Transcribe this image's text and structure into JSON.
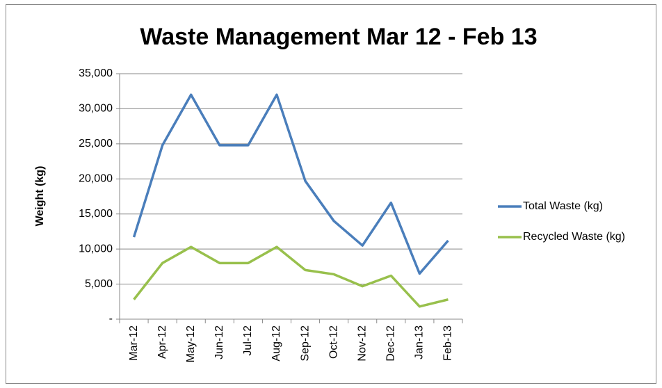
{
  "chart_data": {
    "type": "line",
    "title": "Waste Management Mar 12 - Feb 13",
    "y_label": "Weight (kg)",
    "categories": [
      "Mar-12",
      "Apr-12",
      "May-12",
      "Jun-12",
      "Jul-12",
      "Aug-12",
      "Sep-12",
      "Oct-12",
      "Nov-12",
      "Dec-12",
      "Jan-13",
      "Feb-13"
    ],
    "series": [
      {
        "name": "Total Waste (kg)",
        "color": "#4a7ebb",
        "values": [
          11700,
          24800,
          32000,
          24800,
          24800,
          32000,
          19700,
          14000,
          10500,
          16600,
          6500,
          11200
        ]
      },
      {
        "name": "Recycled Waste (kg)",
        "color": "#98c04c",
        "values": [
          2800,
          8000,
          10300,
          8000,
          8000,
          10300,
          7000,
          6400,
          4700,
          6200,
          1800,
          2800
        ]
      }
    ],
    "ylim": [
      0,
      35000
    ],
    "yticks": [
      {
        "value": 0,
        "label": "-"
      },
      {
        "value": 5000,
        "label": "5,000"
      },
      {
        "value": 10000,
        "label": "10,000"
      },
      {
        "value": 15000,
        "label": "15,000"
      },
      {
        "value": 20000,
        "label": "20,000"
      },
      {
        "value": 25000,
        "label": "25,000"
      },
      {
        "value": 30000,
        "label": "30,000"
      },
      {
        "value": 35000,
        "label": "35,000"
      }
    ],
    "grid": true,
    "legend": "right"
  }
}
